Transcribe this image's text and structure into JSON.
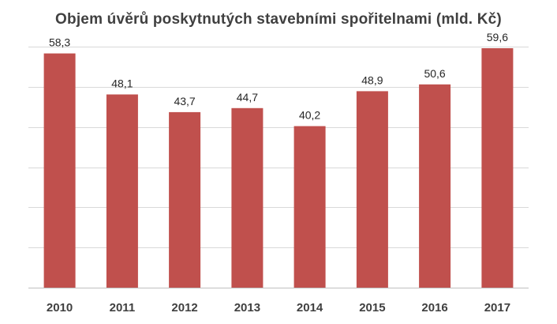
{
  "chart_data": {
    "type": "bar",
    "title": "Objem úvěrů poskytnutých  stavebními spořitelnami (mld. Kč)",
    "xlabel": "",
    "ylabel": "",
    "categories": [
      "2010",
      "2011",
      "2012",
      "2013",
      "2014",
      "2015",
      "2016",
      "2017"
    ],
    "values": [
      58.3,
      48.1,
      43.7,
      44.7,
      40.2,
      48.9,
      50.6,
      59.6
    ],
    "value_labels": [
      "58,3",
      "48,1",
      "43,7",
      "44,7",
      "40,2",
      "48,9",
      "50,6",
      "59,6"
    ],
    "ylim": [
      0,
      60
    ],
    "grid": true,
    "legend": "none",
    "bar_color": "#c0504d"
  }
}
